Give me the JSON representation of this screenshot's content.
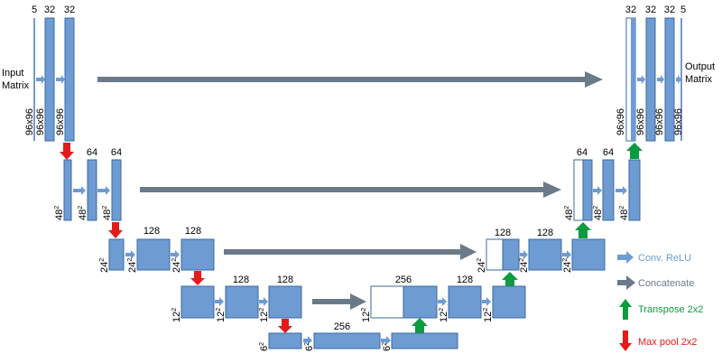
{
  "labels": {
    "input": [
      "Input",
      "Matrix"
    ],
    "output": [
      "Output",
      "Matrix"
    ],
    "ch5": "5",
    "ch32": "32",
    "ch64": "64",
    "ch128": "128",
    "ch256": "256",
    "dim96": "96x96",
    "dim48": "48",
    "dim24": "24",
    "dim12": "12",
    "dim6": "6",
    "sq": "2"
  },
  "legend": [
    {
      "id": "conv",
      "label": "Conv. ReLU",
      "color": "#6e9bd1"
    },
    {
      "id": "concat",
      "label": "Concatenate",
      "color": "#6b7a89"
    },
    {
      "id": "transpose",
      "label": "Transpose 2x2",
      "color": "#0c9b3e"
    },
    {
      "id": "maxpool",
      "label": "Max pool 2x2",
      "color": "#e31b1b"
    }
  ],
  "colors": {
    "block": "#6e9bd1",
    "block_stroke": "#3b6aa3",
    "concat": "#6b7a89",
    "conv_arrow": "#6e9bd1",
    "pool": "#e31b1b",
    "up": "#0c9b3e",
    "text": "#000000"
  }
}
